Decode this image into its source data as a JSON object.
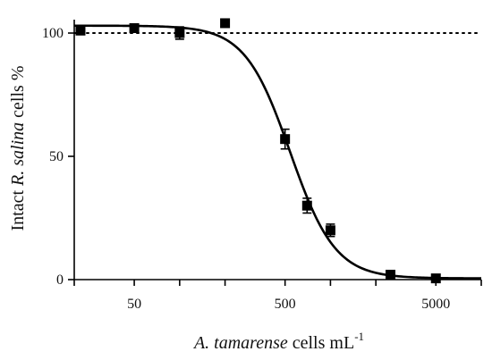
{
  "chart_data": {
    "type": "scatter",
    "title": "",
    "xlabel": {
      "italic": "A. tamarense",
      "plain": " cells mL",
      "sup": "-1"
    },
    "ylabel": {
      "plain1": "Intact ",
      "italic": "R. salina",
      "plain2": " cells %"
    },
    "xscale": "log",
    "xlim": [
      20,
      10000
    ],
    "ylim": [
      0,
      100
    ],
    "xticks": [
      50,
      500,
      5000
    ],
    "yticks": [
      0,
      50,
      100
    ],
    "reference_line_y": 100,
    "grid": false,
    "points": [
      {
        "x": 22,
        "y": 101,
        "err": 1
      },
      {
        "x": 50,
        "y": 102,
        "err": 1
      },
      {
        "x": 100,
        "y": 100,
        "err": 2.5
      },
      {
        "x": 200,
        "y": 104,
        "err": 1
      },
      {
        "x": 500,
        "y": 57,
        "err": 4
      },
      {
        "x": 700,
        "y": 30,
        "err": 3
      },
      {
        "x": 1000,
        "y": 20,
        "err": 2.5
      },
      {
        "x": 2500,
        "y": 2,
        "err": 1
      },
      {
        "x": 5000,
        "y": 0.5,
        "err": 0.5
      }
    ],
    "fit": {
      "model": "sigmoid",
      "top": 103,
      "bottom": 0.5,
      "ec50": 540,
      "hill": 2.9
    }
  }
}
